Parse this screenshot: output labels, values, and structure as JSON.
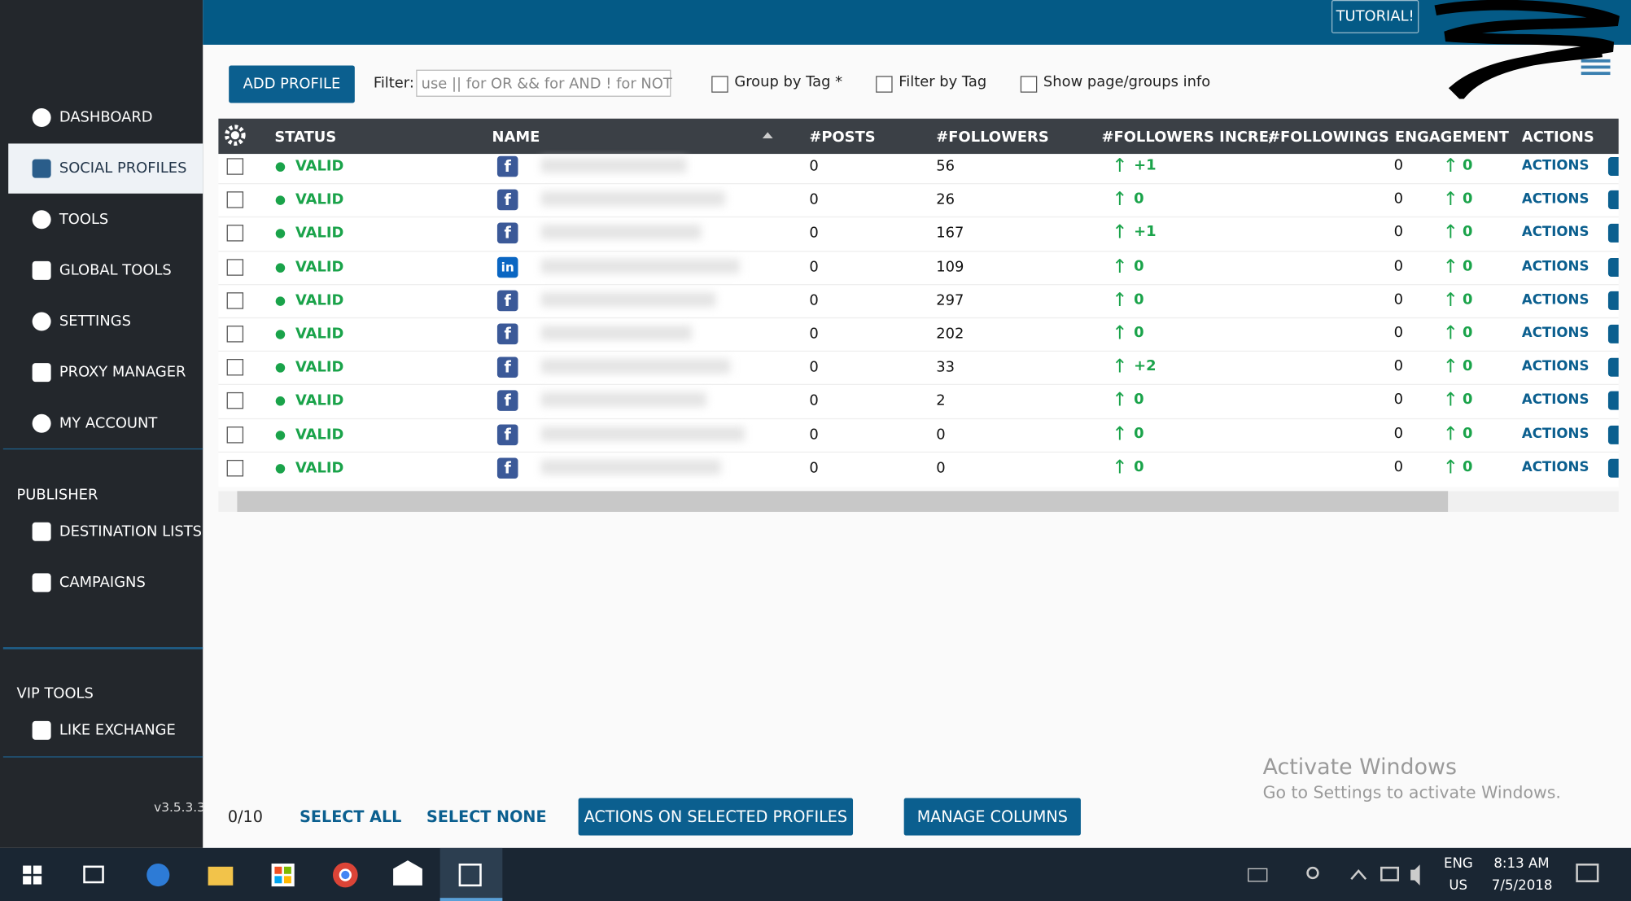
{
  "header": {
    "tutorial": "TUTORIAL!"
  },
  "sidebar": {
    "menu": [
      "DASHBOARD",
      "SOCIAL PROFILES",
      "TOOLS",
      "GLOBAL TOOLS",
      "SETTINGS",
      "PROXY MANAGER",
      "MY ACCOUNT"
    ],
    "sections": [
      {
        "title": "PUBLISHER",
        "items": [
          "DESTINATION LISTS",
          "CAMPAIGNS"
        ]
      },
      {
        "title": "VIP TOOLS",
        "items": [
          "LIKE EXCHANGE"
        ]
      }
    ],
    "version": "v3.5.3.3"
  },
  "toolbar": {
    "add_profile": "ADD PROFILE",
    "filter_label": "Filter:",
    "filter_placeholder": "use || for OR && for AND ! for NOT",
    "checkboxes": [
      "Group by Tag *",
      "Filter by Tag",
      "Show page/groups info"
    ]
  },
  "table": {
    "columns": [
      "STATUS",
      "NAME",
      "#POSTS",
      "#FOLLOWERS",
      "#FOLLOWERS INCRE/",
      "#FOLLOWINGS",
      "ENGAGEMENT",
      "ACTIONS"
    ],
    "rows": [
      {
        "status": "VALID",
        "icon": "f",
        "posts": "0",
        "followers": "56",
        "followers_increase": "+1",
        "followings": "0",
        "engagement": "0",
        "actions": "ACTIONS"
      },
      {
        "status": "VALID",
        "icon": "f",
        "posts": "0",
        "followers": "26",
        "followers_increase": "0",
        "followings": "0",
        "engagement": "0",
        "actions": "ACTIONS"
      },
      {
        "status": "VALID",
        "icon": "f",
        "posts": "0",
        "followers": "167",
        "followers_increase": "+1",
        "followings": "0",
        "engagement": "0",
        "actions": "ACTIONS"
      },
      {
        "status": "VALID",
        "icon": "in",
        "posts": "0",
        "followers": "109",
        "followers_increase": "0",
        "followings": "0",
        "engagement": "0",
        "actions": "ACTIONS"
      },
      {
        "status": "VALID",
        "icon": "f",
        "posts": "0",
        "followers": "297",
        "followers_increase": "0",
        "followings": "0",
        "engagement": "0",
        "actions": "ACTIONS"
      },
      {
        "status": "VALID",
        "icon": "f",
        "posts": "0",
        "followers": "202",
        "followers_increase": "0",
        "followings": "0",
        "engagement": "0",
        "actions": "ACTIONS"
      },
      {
        "status": "VALID",
        "icon": "f",
        "posts": "0",
        "followers": "33",
        "followers_increase": "+2",
        "followings": "0",
        "engagement": "0",
        "actions": "ACTIONS"
      },
      {
        "status": "VALID",
        "icon": "f",
        "posts": "0",
        "followers": "2",
        "followers_increase": "0",
        "followings": "0",
        "engagement": "0",
        "actions": "ACTIONS"
      },
      {
        "status": "VALID",
        "icon": "f",
        "posts": "0",
        "followers": "0",
        "followers_increase": "0",
        "followings": "0",
        "engagement": "0",
        "actions": "ACTIONS"
      },
      {
        "status": "VALID",
        "icon": "f",
        "posts": "0",
        "followers": "0",
        "followers_increase": "0",
        "followings": "0",
        "engagement": "0",
        "actions": "ACTIONS"
      }
    ]
  },
  "footer": {
    "selected": "0/10",
    "select_all": "SELECT ALL",
    "select_none": "SELECT NONE",
    "actions_selected": "ACTIONS ON SELECTED PROFILES",
    "manage_columns": "MANAGE COLUMNS"
  },
  "watermark": {
    "title": "Activate Windows",
    "text": "Go to Settings to activate Windows."
  },
  "taskbar": {
    "language": "ENG",
    "region": "US",
    "time": "8:13 AM",
    "date": "7/5/2018"
  }
}
